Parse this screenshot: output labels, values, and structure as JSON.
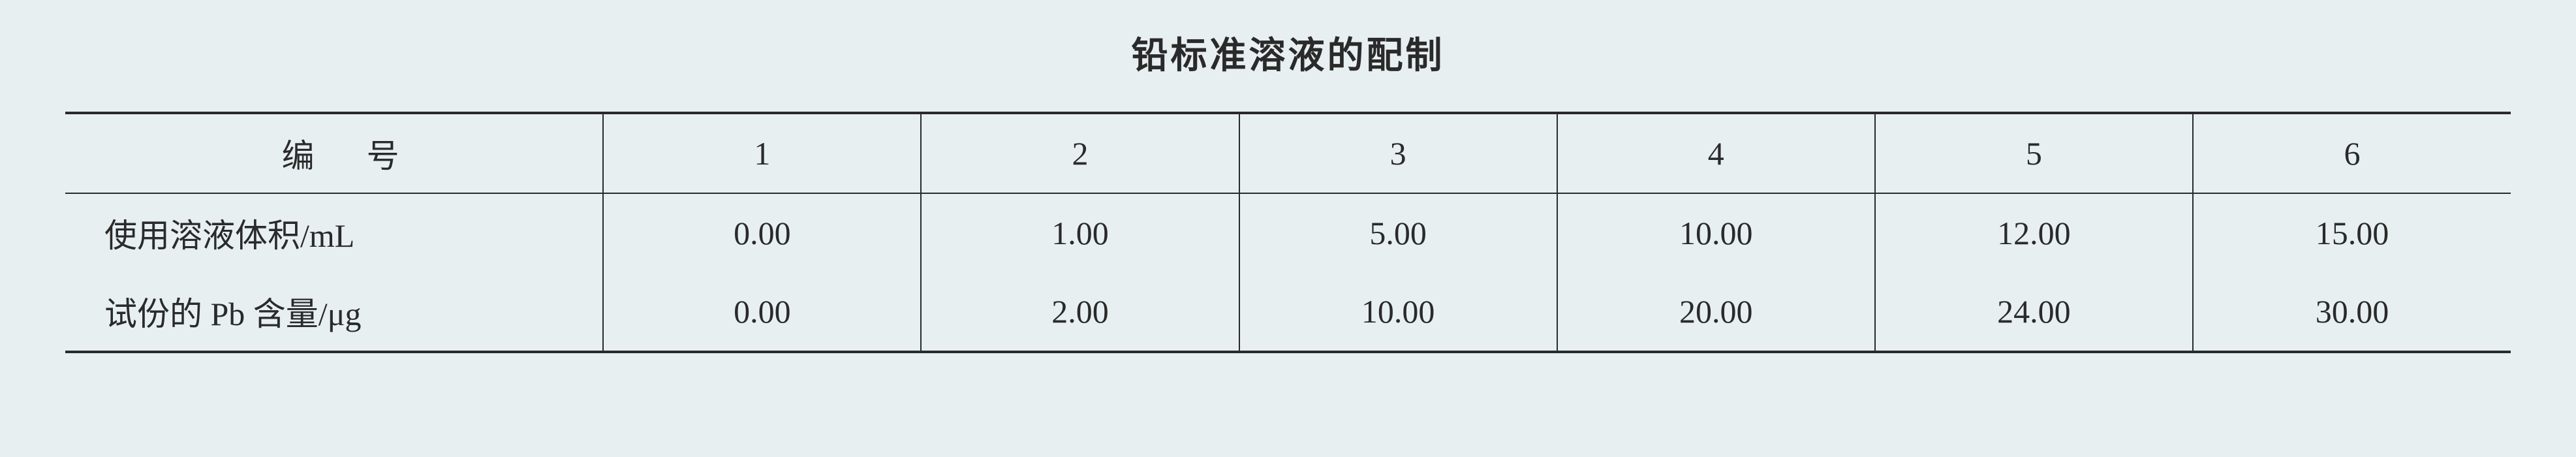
{
  "title": "铅标准溶液的配制",
  "table": {
    "header_label": "编号",
    "columns": [
      "1",
      "2",
      "3",
      "4",
      "5",
      "6"
    ],
    "rows": [
      {
        "label": "使用溶液体积/mL",
        "values": [
          "0.00",
          "1.00",
          "5.00",
          "10.00",
          "12.00",
          "15.00"
        ]
      },
      {
        "label": "试份的 Pb 含量/μg",
        "values": [
          "0.00",
          "2.00",
          "10.00",
          "20.00",
          "24.00",
          "30.00"
        ]
      }
    ],
    "styling": {
      "title_fontsize": 56,
      "cell_fontsize": 50,
      "background_color": "#e7eff1",
      "text_color": "#2a2a2a",
      "border_color": "#2a2a2a",
      "outer_border_width": 4,
      "inner_border_width": 2,
      "font_family": "SimSun"
    }
  }
}
